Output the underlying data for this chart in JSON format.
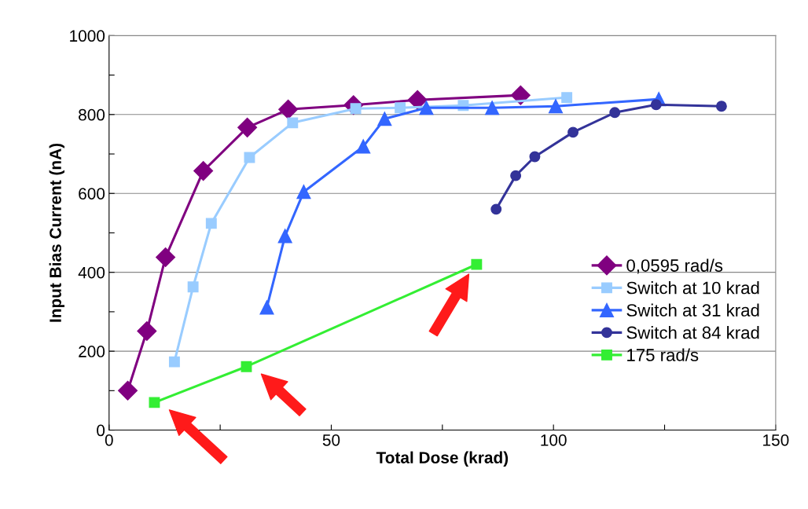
{
  "chart_data": {
    "type": "line",
    "xlabel": "Total Dose (krad)",
    "ylabel": "Input Bias Current (nA)",
    "xlim": [
      0,
      150
    ],
    "ylim": [
      0,
      1000
    ],
    "xticks": [
      0,
      {
        "value": 25,
        "label": null
      },
      50,
      {
        "value": 75,
        "label": null
      },
      100,
      {
        "value": 125,
        "label": null
      },
      150
    ],
    "yticks": [
      0,
      {
        "value": 100,
        "label": null
      },
      200,
      {
        "value": 300,
        "label": null
      },
      400,
      {
        "value": 500,
        "label": null
      },
      600,
      {
        "value": 700,
        "label": null
      },
      800,
      {
        "value": 900,
        "label": null
      },
      1000
    ],
    "grid": "y",
    "legend": "right",
    "series": [
      {
        "name": "0,0595 rad/s",
        "color": "#800080",
        "marker": "diamond",
        "x": [
          4.2,
          8.5,
          12.7,
          21.2,
          31.1,
          40.3,
          55,
          69.4,
          92.6
        ],
        "values": [
          100,
          251,
          438,
          657,
          767,
          813,
          824,
          837,
          849
        ]
      },
      {
        "name": "Switch at 10 krad",
        "color": "#99ccff",
        "marker": "square",
        "x": [
          14.7,
          18.9,
          23,
          31.6,
          41.3,
          55.5,
          65.5,
          79.7,
          103
        ],
        "values": [
          173,
          363,
          524,
          691,
          779,
          815,
          817,
          823,
          843
        ]
      },
      {
        "name": "Switch at 31 krad",
        "color": "#3366ff",
        "marker": "triangle",
        "x": [
          35.5,
          39.6,
          43.8,
          57.2,
          62,
          71.4,
          86.2,
          100.5,
          123.7
        ],
        "values": [
          311,
          492,
          604,
          719,
          789,
          817,
          817,
          821,
          839
        ]
      },
      {
        "name": "Switch at 84 krad",
        "color": "#333399",
        "marker": "circle",
        "x": [
          87.1,
          91.5,
          95.8,
          104.4,
          113.8,
          123.1,
          137.8
        ],
        "values": [
          560,
          645,
          693,
          755,
          805,
          825,
          821
        ]
      },
      {
        "name": "175 rad/s",
        "color": "#33ee33",
        "marker": "square",
        "x": [
          10.2,
          30.9,
          82.7
        ],
        "values": [
          70,
          161,
          420
        ]
      }
    ]
  }
}
